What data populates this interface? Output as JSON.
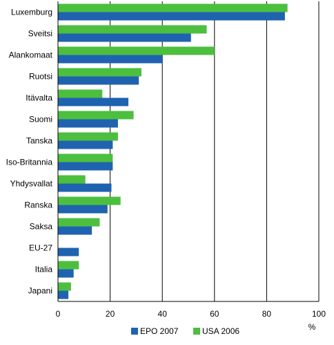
{
  "chart_data": {
    "type": "bar",
    "orientation": "horizontal",
    "categories": [
      "Luxemburg",
      "Sveitsi",
      "Alankomaat",
      "Ruotsi",
      "Itävalta",
      "Suomi",
      "Tanska",
      "Iso-Britannia",
      "Yhdysvallat",
      "Ranska",
      "Saksa",
      "EU-27",
      "Italia",
      "Japani"
    ],
    "series": [
      {
        "name": "USA 2006",
        "color": "#4dbf3f",
        "values": [
          88,
          57,
          60,
          32,
          17,
          29,
          23,
          21,
          10.5,
          24,
          16,
          null,
          8,
          5
        ]
      },
      {
        "name": "EPO 2007",
        "color": "#1f63b0",
        "values": [
          87,
          51,
          40,
          31,
          27,
          23,
          21,
          21,
          20.5,
          19,
          13,
          8,
          6,
          4
        ]
      }
    ],
    "xlim": [
      0,
      100
    ],
    "xticks": [
      0,
      20,
      40,
      60,
      80,
      100
    ],
    "xlabel": "%",
    "grid": "vertical",
    "legend_position": "bottom",
    "legend": [
      {
        "label": "EPO 2007",
        "color": "#1f63b0"
      },
      {
        "label": "USA 2006",
        "color": "#4dbf3f"
      }
    ]
  }
}
